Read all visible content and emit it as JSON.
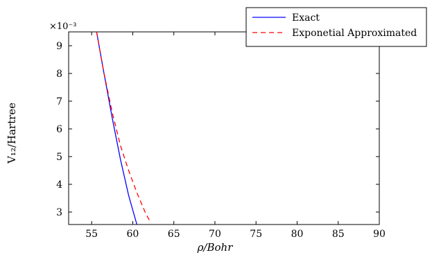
{
  "chart_data": {
    "type": "line",
    "xlabel": "ρ/Bohr",
    "ylabel": "V₁₂/Hartree",
    "y_exponent": "×10⁻³",
    "xlim": [
      52.2,
      90
    ],
    "ylim": [
      2.55,
      9.5
    ],
    "x_ticks": [
      55,
      60,
      65,
      70,
      75,
      80,
      85,
      90
    ],
    "y_ticks": [
      3,
      4,
      5,
      6,
      7,
      8,
      9
    ],
    "grid": false,
    "legend_position": "top-right",
    "series": [
      {
        "name": "Exact",
        "color": "#0000ff",
        "style": "solid",
        "x": [
          55.6,
          56.5,
          57.5,
          58.5,
          59.5,
          60.5
        ],
        "y": [
          9.5,
          8.0,
          6.4,
          4.9,
          3.6,
          2.55
        ]
      },
      {
        "name": "Exponetial Approximated",
        "color": "#ff0000",
        "style": "dashed",
        "x": [
          55.6,
          56.5,
          57.5,
          58.5,
          59.5,
          60.5,
          61.5,
          62.2
        ],
        "y": [
          9.5,
          8.0,
          6.6,
          5.4,
          4.5,
          3.7,
          3.0,
          2.6
        ]
      }
    ]
  }
}
